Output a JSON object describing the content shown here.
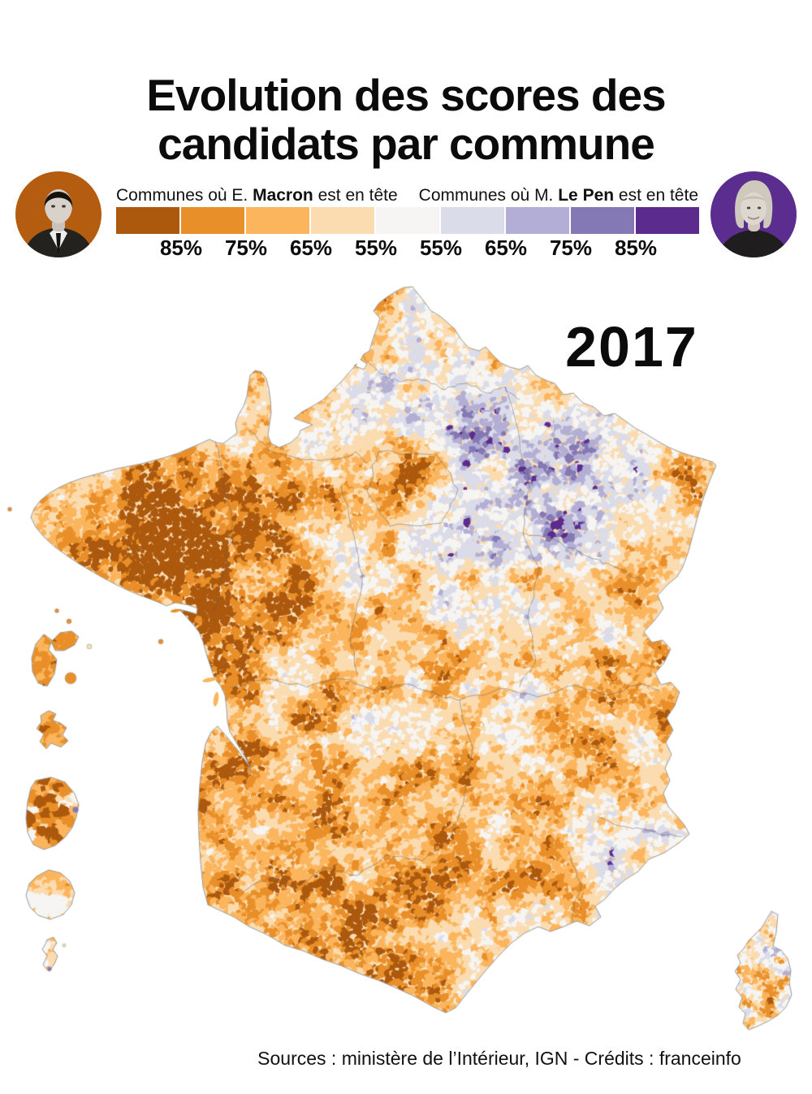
{
  "title": {
    "line1": "Evolution des scores des",
    "line2": "candidats par commune"
  },
  "legend": {
    "macron": {
      "prefix": "Communes où E. ",
      "name": "Macron",
      "suffix": " est en tête",
      "avatar_bg": "#b45c10"
    },
    "lepen": {
      "prefix": "Communes où M. ",
      "name": "Le Pen",
      "suffix": " est en tête",
      "avatar_bg": "#5b2d8e"
    },
    "scale": {
      "colors": [
        "#ac590e",
        "#e98f29",
        "#fbb55d",
        "#fbdcb1",
        "#f6f5f3",
        "#dbdcea",
        "#b2aed5",
        "#8478b5",
        "#5b2c8d"
      ],
      "tick_labels": [
        "85%",
        "75%",
        "65%",
        "55%",
        "55%",
        "65%",
        "75%",
        "85%"
      ]
    }
  },
  "map": {
    "type": "choropleth",
    "year_label": "2017",
    "thresholds": [
      "55%",
      "65%",
      "75%",
      "85%"
    ],
    "border_color": "#9b9b9b"
  },
  "source": "Sources : ministère de l’Intérieur, IGN - Crédits : franceinfo"
}
